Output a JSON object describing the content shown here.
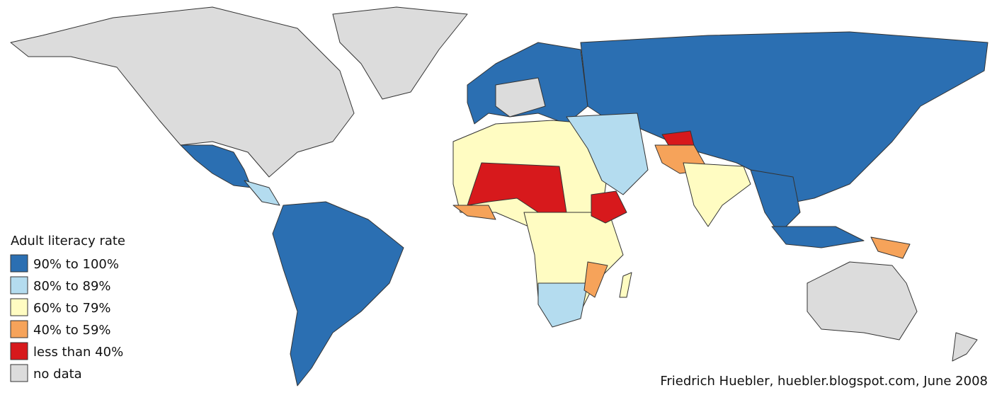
{
  "legend": {
    "title": "Adult literacy rate",
    "items": [
      {
        "label": "90% to 100%",
        "color": "#2b6fb2"
      },
      {
        "label": "80% to 89%",
        "color": "#b4dcef"
      },
      {
        "label": "60% to 79%",
        "color": "#fffcc2"
      },
      {
        "label": "40% to 59%",
        "color": "#f6a35a"
      },
      {
        "label": "less than 40%",
        "color": "#d7191c"
      },
      {
        "label": "no data",
        "color": "#dcdcdc"
      }
    ]
  },
  "credit": "Friedrich Huebler, huebler.blogspot.com, June 2008"
}
